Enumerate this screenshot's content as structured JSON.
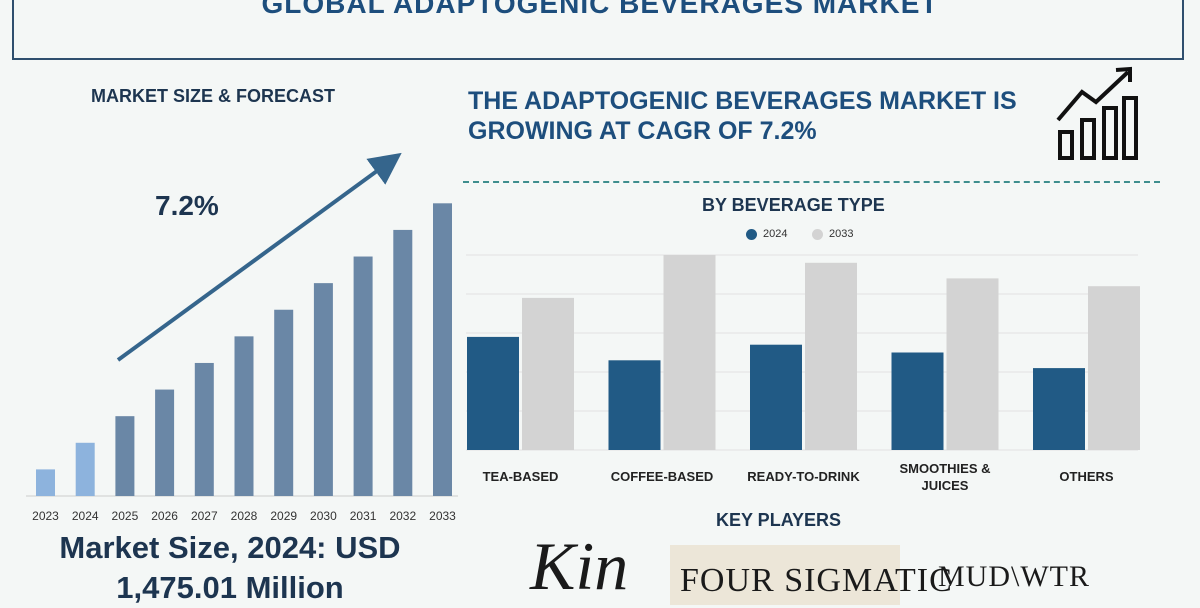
{
  "page": {
    "title": "GLOBAL ADAPTOGENIC BEVERAGES MARKET",
    "left_heading": "MARKET SIZE & FORECAST",
    "headline": "THE ADAPTOGENIC BEVERAGES MARKET IS GROWING AT CAGR OF 7.2%",
    "cagr_label": "7.2%",
    "market_size_line1": "Market Size, 2024: USD",
    "market_size_line2": "1,475.01 Million",
    "segment_heading": "BY BEVERAGE TYPE",
    "key_players_heading": "KEY PLAYERS",
    "key_players": [
      "Kin",
      "FOUR SIGMATIC",
      "MUD\\WTR"
    ]
  },
  "colors": {
    "title": "#1d4e7d",
    "bar_highlight": "#8db3dd",
    "bar_main": "#6a87a6",
    "series_2024": "#215a85",
    "series_2033": "#d3d3d3",
    "arrow": "#35658c"
  },
  "chart_data": [
    {
      "type": "bar",
      "title": "MARKET SIZE & FORECAST",
      "categories": [
        "2023",
        "2024",
        "2025",
        "2026",
        "2027",
        "2028",
        "2029",
        "2030",
        "2031",
        "2032",
        "2033"
      ],
      "values": [
        1.0,
        2.0,
        3.0,
        4.0,
        5.0,
        6.0,
        7.0,
        8.0,
        9.0,
        10.0,
        11.0
      ],
      "highlighted": [
        "2023",
        "2024"
      ],
      "ylim": [
        0,
        11.5
      ],
      "annotation": "7.2%"
    },
    {
      "type": "bar",
      "title": "BY BEVERAGE TYPE",
      "categories": [
        "TEA-BASED",
        "COFFEE-BASED",
        "READY-TO-DRINK",
        "SMOOTHIES & JUICES",
        "OTHERS"
      ],
      "series": [
        {
          "name": "2024",
          "values": [
            2.9,
            2.3,
            2.7,
            2.5,
            2.1
          ]
        },
        {
          "name": "2033",
          "values": [
            3.9,
            5.0,
            4.8,
            4.4,
            4.2
          ]
        }
      ],
      "ylim": [
        0,
        5.0
      ],
      "grid": true
    }
  ]
}
